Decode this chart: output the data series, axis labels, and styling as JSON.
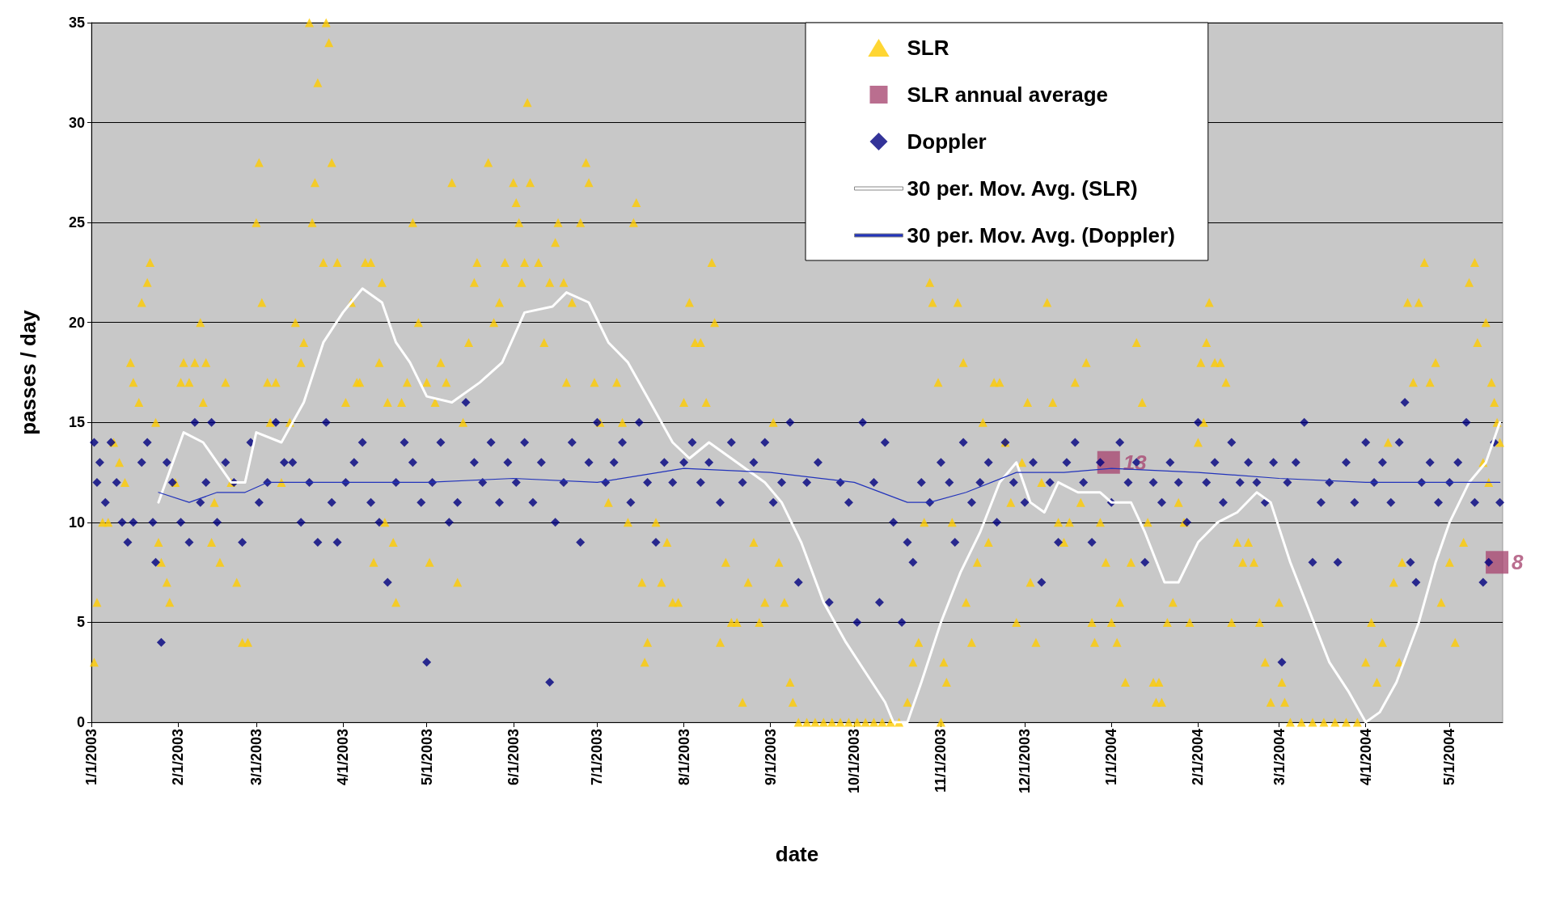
{
  "chart_data": {
    "type": "scatter",
    "xlabel": "date",
    "ylabel": "passes / day",
    "xlim": [
      "2003-01-01",
      "2004-05-20"
    ],
    "xticks": [
      {
        "value": "2003-01-01",
        "label": "1/1/2003"
      },
      {
        "value": "2003-02-01",
        "label": "2/1/2003"
      },
      {
        "value": "2003-03-01",
        "label": "3/1/2003"
      },
      {
        "value": "2003-04-01",
        "label": "4/1/2003"
      },
      {
        "value": "2003-05-01",
        "label": "5/1/2003"
      },
      {
        "value": "2003-06-01",
        "label": "6/1/2003"
      },
      {
        "value": "2003-07-01",
        "label": "7/1/2003"
      },
      {
        "value": "2003-08-01",
        "label": "8/1/2003"
      },
      {
        "value": "2003-09-01",
        "label": "9/1/2003"
      },
      {
        "value": "2003-10-01",
        "label": "10/1/2003"
      },
      {
        "value": "2003-11-01",
        "label": "11/1/2003"
      },
      {
        "value": "2003-12-01",
        "label": "12/1/2003"
      },
      {
        "value": "2004-01-01",
        "label": "1/1/2004"
      },
      {
        "value": "2004-02-01",
        "label": "2/1/2004"
      },
      {
        "value": "2004-03-01",
        "label": "3/1/2004"
      },
      {
        "value": "2004-04-01",
        "label": "4/1/2004"
      },
      {
        "value": "2004-05-01",
        "label": "5/1/2004"
      }
    ],
    "ylim": [
      0,
      35
    ],
    "yticks": [
      0,
      5,
      10,
      15,
      20,
      25,
      30,
      35
    ],
    "grid": "y",
    "legend": "top right",
    "series": [
      {
        "name": "SLR",
        "marker": "triangle",
        "color": "#ffcc00",
        "x": [
          "2003-01-02",
          "2003-01-03",
          "2003-01-05",
          "2003-01-07",
          "2003-01-09",
          "2003-01-11",
          "2003-01-13",
          "2003-01-15",
          "2003-01-16",
          "2003-01-18",
          "2003-01-19",
          "2003-01-21",
          "2003-01-22",
          "2003-01-24",
          "2003-01-25",
          "2003-01-26",
          "2003-01-28",
          "2003-01-29",
          "2003-01-31",
          "2003-02-02",
          "2003-02-03",
          "2003-02-05",
          "2003-02-07",
          "2003-02-09",
          "2003-02-10",
          "2003-02-11",
          "2003-02-13",
          "2003-02-14",
          "2003-02-16",
          "2003-02-18",
          "2003-02-20",
          "2003-02-22",
          "2003-02-24",
          "2003-02-26",
          "2003-03-01",
          "2003-03-02",
          "2003-03-03",
          "2003-03-05",
          "2003-03-06",
          "2003-03-08",
          "2003-03-10",
          "2003-03-13",
          "2003-03-15",
          "2003-03-17",
          "2003-03-18",
          "2003-03-20",
          "2003-03-21",
          "2003-03-22",
          "2003-03-23",
          "2003-03-25",
          "2003-03-26",
          "2003-03-27",
          "2003-03-28",
          "2003-03-30",
          "2003-04-02",
          "2003-04-04",
          "2003-04-06",
          "2003-04-07",
          "2003-04-09",
          "2003-04-11",
          "2003-04-12",
          "2003-04-14",
          "2003-04-15",
          "2003-04-16",
          "2003-04-17",
          "2003-04-19",
          "2003-04-20",
          "2003-04-22",
          "2003-04-24",
          "2003-04-26",
          "2003-04-28",
          "2003-05-01",
          "2003-05-02",
          "2003-05-04",
          "2003-05-06",
          "2003-05-08",
          "2003-05-10",
          "2003-05-12",
          "2003-05-14",
          "2003-05-16",
          "2003-05-18",
          "2003-05-19",
          "2003-05-23",
          "2003-05-25",
          "2003-05-27",
          "2003-05-29",
          "2003-06-01",
          "2003-06-02",
          "2003-06-03",
          "2003-06-04",
          "2003-06-05",
          "2003-06-06",
          "2003-06-07",
          "2003-06-10",
          "2003-06-12",
          "2003-06-14",
          "2003-06-16",
          "2003-06-17",
          "2003-06-19",
          "2003-06-20",
          "2003-06-22",
          "2003-06-25",
          "2003-06-27",
          "2003-06-28",
          "2003-06-30",
          "2003-07-02",
          "2003-07-05",
          "2003-07-08",
          "2003-07-10",
          "2003-07-12",
          "2003-07-14",
          "2003-07-15",
          "2003-07-17",
          "2003-07-18",
          "2003-07-19",
          "2003-07-22",
          "2003-07-24",
          "2003-07-26",
          "2003-07-28",
          "2003-07-30",
          "2003-08-01",
          "2003-08-03",
          "2003-08-05",
          "2003-08-07",
          "2003-08-09",
          "2003-08-11",
          "2003-08-12",
          "2003-08-14",
          "2003-08-16",
          "2003-08-18",
          "2003-08-20",
          "2003-08-22",
          "2003-08-24",
          "2003-08-26",
          "2003-08-28",
          "2003-08-30",
          "2003-09-02",
          "2003-09-04",
          "2003-09-06",
          "2003-09-08",
          "2003-09-09",
          "2003-09-11",
          "2003-09-14",
          "2003-09-17",
          "2003-09-20",
          "2003-09-23",
          "2003-09-26",
          "2003-09-29",
          "2003-10-02",
          "2003-10-05",
          "2003-10-08",
          "2003-10-11",
          "2003-10-14",
          "2003-10-17",
          "2003-10-20",
          "2003-10-22",
          "2003-10-24",
          "2003-10-26",
          "2003-10-28",
          "2003-10-29",
          "2003-10-31",
          "2003-11-01",
          "2003-11-02",
          "2003-11-03",
          "2003-11-05",
          "2003-11-07",
          "2003-11-09",
          "2003-11-10",
          "2003-11-12",
          "2003-11-14",
          "2003-11-16",
          "2003-11-18",
          "2003-11-20",
          "2003-11-22",
          "2003-11-24",
          "2003-11-26",
          "2003-11-28",
          "2003-11-30",
          "2003-12-02",
          "2003-12-03",
          "2003-12-05",
          "2003-12-07",
          "2003-12-09",
          "2003-12-11",
          "2003-12-13",
          "2003-12-15",
          "2003-12-17",
          "2003-12-19",
          "2003-12-21",
          "2003-12-23",
          "2003-12-25",
          "2003-12-26",
          "2003-12-28",
          "2003-12-30",
          "2004-01-01",
          "2004-01-03",
          "2004-01-04",
          "2004-01-06",
          "2004-01-08",
          "2004-01-10",
          "2004-01-12",
          "2004-01-14",
          "2004-01-16",
          "2004-01-17",
          "2004-01-18",
          "2004-01-19",
          "2004-01-21",
          "2004-01-23",
          "2004-01-25",
          "2004-01-27",
          "2004-01-29",
          "2004-02-01",
          "2004-02-02",
          "2004-02-03",
          "2004-02-04",
          "2004-02-05",
          "2004-02-07",
          "2004-02-09",
          "2004-02-11",
          "2004-02-13",
          "2004-02-15",
          "2004-02-17",
          "2004-02-19",
          "2004-02-21",
          "2004-02-23",
          "2004-02-25",
          "2004-02-27",
          "2004-03-01",
          "2004-03-02",
          "2004-03-03",
          "2004-03-05",
          "2004-03-09",
          "2004-03-13",
          "2004-03-17",
          "2004-03-21",
          "2004-03-25",
          "2004-03-29",
          "2004-04-01",
          "2004-04-03",
          "2004-04-05",
          "2004-04-07",
          "2004-04-09",
          "2004-04-11",
          "2004-04-13",
          "2004-04-14",
          "2004-04-16",
          "2004-04-18",
          "2004-04-20",
          "2004-04-22",
          "2004-04-24",
          "2004-04-26",
          "2004-04-28",
          "2004-05-01",
          "2004-05-03",
          "2004-05-06",
          "2004-05-08",
          "2004-05-10",
          "2004-05-11",
          "2004-05-13",
          "2004-05-14",
          "2004-05-15",
          "2004-05-16",
          "2004-05-17",
          "2004-05-18",
          "2004-05-19"
        ],
        "values": [
          3,
          6,
          10,
          10,
          14,
          13,
          12,
          18,
          17,
          16,
          21,
          22,
          23,
          15,
          9,
          8,
          7,
          6,
          12,
          17,
          18,
          17,
          18,
          20,
          16,
          18,
          9,
          11,
          8,
          17,
          12,
          7,
          4,
          4,
          25,
          28,
          21,
          17,
          15,
          17,
          12,
          15,
          20,
          18,
          19,
          35,
          25,
          27,
          32,
          23,
          35,
          34,
          28,
          23,
          16,
          21,
          17,
          17,
          23,
          23,
          8,
          18,
          22,
          10,
          16,
          9,
          6,
          16,
          17,
          25,
          20,
          17,
          8,
          16,
          18,
          17,
          27,
          7,
          15,
          19,
          22,
          23,
          28,
          20,
          21,
          23,
          27,
          26,
          25,
          22,
          23,
          31,
          27,
          23,
          19,
          22,
          24,
          25,
          22,
          17,
          21,
          25,
          28,
          27,
          17,
          15,
          11,
          17,
          15,
          10,
          25,
          26,
          7,
          3,
          4,
          10,
          7,
          9,
          6,
          6,
          16,
          21,
          19,
          19,
          16,
          23,
          20,
          4,
          8,
          5,
          5,
          1,
          7,
          9,
          5,
          6,
          15,
          8,
          6,
          2,
          1,
          0,
          0,
          0,
          0,
          0,
          0,
          0,
          0,
          0,
          0,
          0,
          0,
          0,
          1,
          3,
          4,
          10,
          22,
          21,
          17,
          0,
          3,
          2,
          10,
          21,
          18,
          6,
          4,
          8,
          15,
          9,
          17,
          17,
          14,
          11,
          5,
          13,
          16,
          7,
          4,
          12,
          21,
          16,
          10,
          9,
          10,
          17,
          11,
          18,
          5,
          4,
          10,
          8,
          5,
          4,
          6,
          2,
          8,
          19,
          16,
          10,
          2,
          1,
          2,
          1,
          5,
          6,
          11,
          10,
          5,
          14,
          18,
          15,
          19,
          21,
          18,
          18,
          17,
          5,
          9,
          8,
          9,
          8,
          5,
          3,
          1,
          6,
          2,
          1,
          0,
          0,
          0,
          0,
          0,
          0,
          0,
          3,
          5,
          2,
          4,
          14,
          7,
          3,
          8,
          21,
          17,
          21,
          23,
          17,
          18,
          6,
          8,
          4,
          9,
          22,
          23,
          19,
          13,
          20,
          12,
          17,
          16,
          15,
          14
        ]
      },
      {
        "name": "SLR annual average",
        "marker": "square",
        "color": "#a94a73",
        "x": [
          "2003-12-31",
          "2004-05-18"
        ],
        "values": [
          13,
          8
        ],
        "value_labels": [
          "13",
          "8"
        ]
      },
      {
        "name": "Doppler",
        "marker": "diamond",
        "color": "#000080",
        "x": [
          "2003-01-02",
          "2003-01-03",
          "2003-01-04",
          "2003-01-06",
          "2003-01-08",
          "2003-01-10",
          "2003-01-12",
          "2003-01-14",
          "2003-01-16",
          "2003-01-19",
          "2003-01-21",
          "2003-01-23",
          "2003-01-24",
          "2003-01-26",
          "2003-01-28",
          "2003-01-30",
          "2003-02-02",
          "2003-02-05",
          "2003-02-07",
          "2003-02-09",
          "2003-02-11",
          "2003-02-13",
          "2003-02-15",
          "2003-02-18",
          "2003-02-21",
          "2003-02-24",
          "2003-02-27",
          "2003-03-02",
          "2003-03-05",
          "2003-03-08",
          "2003-03-11",
          "2003-03-14",
          "2003-03-17",
          "2003-03-20",
          "2003-03-23",
          "2003-03-26",
          "2003-03-28",
          "2003-03-30",
          "2003-04-02",
          "2003-04-05",
          "2003-04-08",
          "2003-04-11",
          "2003-04-14",
          "2003-04-17",
          "2003-04-20",
          "2003-04-23",
          "2003-04-26",
          "2003-04-29",
          "2003-05-01",
          "2003-05-03",
          "2003-05-06",
          "2003-05-09",
          "2003-05-12",
          "2003-05-15",
          "2003-05-18",
          "2003-05-21",
          "2003-05-24",
          "2003-05-27",
          "2003-05-30",
          "2003-06-02",
          "2003-06-05",
          "2003-06-08",
          "2003-06-11",
          "2003-06-14",
          "2003-06-16",
          "2003-06-19",
          "2003-06-22",
          "2003-06-25",
          "2003-06-28",
          "2003-07-01",
          "2003-07-04",
          "2003-07-07",
          "2003-07-10",
          "2003-07-13",
          "2003-07-16",
          "2003-07-19",
          "2003-07-22",
          "2003-07-25",
          "2003-07-28",
          "2003-08-01",
          "2003-08-04",
          "2003-08-07",
          "2003-08-10",
          "2003-08-14",
          "2003-08-18",
          "2003-08-22",
          "2003-08-26",
          "2003-08-30",
          "2003-09-02",
          "2003-09-05",
          "2003-09-08",
          "2003-09-11",
          "2003-09-14",
          "2003-09-18",
          "2003-09-22",
          "2003-09-26",
          "2003-09-29",
          "2003-10-02",
          "2003-10-04",
          "2003-10-08",
          "2003-10-10",
          "2003-10-12",
          "2003-10-15",
          "2003-10-18",
          "2003-10-20",
          "2003-10-22",
          "2003-10-25",
          "2003-10-28",
          "2003-11-01",
          "2003-11-04",
          "2003-11-06",
          "2003-11-09",
          "2003-11-12",
          "2003-11-15",
          "2003-11-18",
          "2003-11-21",
          "2003-11-24",
          "2003-11-27",
          "2003-12-01",
          "2003-12-04",
          "2003-12-07",
          "2003-12-10",
          "2003-12-13",
          "2003-12-16",
          "2003-12-19",
          "2003-12-22",
          "2003-12-25",
          "2003-12-28",
          "2004-01-01",
          "2004-01-04",
          "2004-01-07",
          "2004-01-10",
          "2004-01-13",
          "2004-01-16",
          "2004-01-19",
          "2004-01-22",
          "2004-01-25",
          "2004-01-28",
          "2004-02-01",
          "2004-02-04",
          "2004-02-07",
          "2004-02-10",
          "2004-02-13",
          "2004-02-16",
          "2004-02-19",
          "2004-02-22",
          "2004-02-25",
          "2004-02-28",
          "2004-03-02",
          "2004-03-04",
          "2004-03-07",
          "2004-03-10",
          "2004-03-13",
          "2004-03-16",
          "2004-03-19",
          "2004-03-22",
          "2004-03-25",
          "2004-03-28",
          "2004-04-01",
          "2004-04-04",
          "2004-04-07",
          "2004-04-10",
          "2004-04-13",
          "2004-04-15",
          "2004-04-17",
          "2004-04-19",
          "2004-04-21",
          "2004-04-24",
          "2004-04-27",
          "2004-05-01",
          "2004-05-04",
          "2004-05-07",
          "2004-05-10",
          "2004-05-13",
          "2004-05-15",
          "2004-05-17",
          "2004-05-19"
        ],
        "values": [
          14,
          12,
          13,
          11,
          14,
          12,
          10,
          9,
          10,
          13,
          14,
          10,
          8,
          4,
          13,
          12,
          10,
          9,
          15,
          11,
          12,
          15,
          10,
          13,
          12,
          9,
          14,
          11,
          12,
          15,
          13,
          13,
          10,
          12,
          9,
          15,
          11,
          9,
          12,
          13,
          14,
          11,
          10,
          7,
          12,
          14,
          13,
          11,
          3,
          12,
          14,
          10,
          11,
          16,
          13,
          12,
          14,
          11,
          13,
          12,
          14,
          11,
          13,
          2,
          10,
          12,
          14,
          9,
          13,
          15,
          12,
          13,
          14,
          11,
          15,
          12,
          9,
          13,
          12,
          13,
          14,
          12,
          13,
          11,
          14,
          12,
          13,
          14,
          11,
          12,
          15,
          7,
          12,
          13,
          6,
          12,
          11,
          5,
          15,
          12,
          6,
          14,
          10,
          5,
          9,
          8,
          12,
          11,
          13,
          12,
          9,
          14,
          11,
          12,
          13,
          10,
          14,
          12,
          11,
          13,
          7,
          12,
          9,
          13,
          14,
          12,
          9,
          13,
          11,
          14,
          12,
          13,
          8,
          12,
          11,
          13,
          12,
          10,
          15,
          12,
          13,
          11,
          14,
          12,
          13,
          12,
          11,
          13,
          3,
          12,
          13,
          15,
          8,
          11,
          12,
          8,
          13,
          11,
          14,
          12,
          13,
          11,
          14,
          16,
          8,
          7,
          12,
          13,
          11,
          12,
          13,
          15,
          11,
          7,
          8,
          14,
          11
        ]
      },
      {
        "name": "30 per. Mov. Avg. (SLR)",
        "type": "line",
        "marker": "none",
        "color": "#ffffff",
        "x": [
          "2003-01-25",
          "2003-02-03",
          "2003-02-10",
          "2003-02-20",
          "2003-02-25",
          "2003-03-01",
          "2003-03-10",
          "2003-03-18",
          "2003-03-25",
          "2003-04-01",
          "2003-04-08",
          "2003-04-15",
          "2003-04-20",
          "2003-04-25",
          "2003-05-01",
          "2003-05-10",
          "2003-05-20",
          "2003-05-28",
          "2003-06-05",
          "2003-06-15",
          "2003-06-20",
          "2003-06-28",
          "2003-07-05",
          "2003-07-12",
          "2003-07-20",
          "2003-07-28",
          "2003-08-03",
          "2003-08-10",
          "2003-08-20",
          "2003-08-30",
          "2003-09-05",
          "2003-09-12",
          "2003-09-20",
          "2003-09-28",
          "2003-10-05",
          "2003-10-12",
          "2003-10-15",
          "2003-10-20",
          "2003-10-25",
          "2003-11-01",
          "2003-11-08",
          "2003-11-15",
          "2003-11-22",
          "2003-11-28",
          "2003-12-03",
          "2003-12-08",
          "2003-12-13",
          "2003-12-20",
          "2003-12-28",
          "2004-01-01",
          "2004-01-08",
          "2004-01-13",
          "2004-01-20",
          "2004-01-25",
          "2004-02-01",
          "2004-02-08",
          "2004-02-15",
          "2004-02-22",
          "2004-02-27",
          "2004-03-05",
          "2004-03-12",
          "2004-03-19",
          "2004-03-26",
          "2004-04-01",
          "2004-04-06",
          "2004-04-12",
          "2004-04-20",
          "2004-04-26",
          "2004-05-01",
          "2004-05-08",
          "2004-05-14",
          "2004-05-19"
        ],
        "values": [
          11,
          14.5,
          14,
          12,
          12,
          14.5,
          14,
          16,
          19,
          20.5,
          21.7,
          21,
          19,
          18,
          16.3,
          16,
          17,
          18,
          20.5,
          20.8,
          21.5,
          21,
          19,
          18,
          16,
          14,
          13.2,
          14,
          13,
          12,
          11,
          9,
          6,
          4,
          2.5,
          1,
          0,
          0,
          2,
          5,
          7.5,
          9.5,
          12,
          13,
          11,
          10.5,
          12,
          11.5,
          11.5,
          11,
          11,
          9.5,
          7,
          7,
          9,
          10,
          10.5,
          11.5,
          11,
          8,
          5.5,
          3,
          1.5,
          0,
          0.5,
          2,
          5,
          8,
          10,
          12,
          13,
          15
        ]
      },
      {
        "name": "30 per. Mov. Avg. (Doppler)",
        "type": "line",
        "marker": "none",
        "color": "#2233bb",
        "x": [
          "2003-01-25",
          "2003-02-05",
          "2003-02-15",
          "2003-02-25",
          "2003-03-05",
          "2003-04-01",
          "2003-05-01",
          "2003-06-01",
          "2003-07-01",
          "2003-08-01",
          "2003-09-01",
          "2003-10-01",
          "2003-10-20",
          "2003-10-28",
          "2003-11-10",
          "2003-11-28",
          "2003-12-15",
          "2004-01-01",
          "2004-02-01",
          "2004-03-01",
          "2004-04-01",
          "2004-05-01",
          "2004-05-19"
        ],
        "values": [
          11.5,
          11,
          11.5,
          11.5,
          12,
          12,
          12,
          12.2,
          12,
          12.7,
          12.5,
          12,
          11,
          11,
          11.5,
          12.5,
          12.5,
          12.7,
          12.5,
          12.2,
          12,
          12,
          12
        ]
      }
    ]
  }
}
